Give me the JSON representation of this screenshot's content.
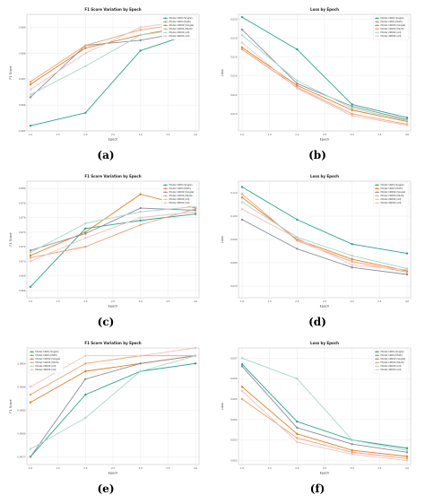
{
  "panels": [
    {
      "id": "a",
      "caption": "(a)",
      "chart_data": {
        "type": "line",
        "title": "F1 Score Variation by Epoch",
        "xlabel": "Epoch",
        "ylabel": "F1 Score",
        "x": [
          1,
          2,
          3,
          4
        ],
        "xticks": [
          1.0,
          1.5,
          2.0,
          2.5,
          3.0,
          3.5,
          4.0
        ],
        "xtick_labels": [
          "1.0",
          "1.5",
          "2.0",
          "2.5",
          "3.0",
          "3.5",
          "4.0"
        ],
        "ylim": [
          0.985,
          0.9895
        ],
        "yticks": [
          0.985,
          0.986,
          0.987,
          0.988,
          0.989
        ],
        "ytick_labels": [
          "0.985",
          "0.986",
          "0.987",
          "0.988",
          "0.989"
        ],
        "grid": true,
        "legend_position": "top-right",
        "series": [
          {
            "name": "Model 1000 (Single)",
            "color": "#2ca58d",
            "values": [
              0.9852,
              0.9857,
              0.9881,
              0.9888
            ]
          },
          {
            "name": "Model 1000 (Multi)",
            "color": "#e67e22",
            "values": [
              0.9868,
              0.9882,
              0.9887,
              0.9891
            ]
          },
          {
            "name": "Model 10000 (Single)",
            "color": "#8e8e9e",
            "values": [
              0.9863,
              0.9883,
              0.9885,
              0.9889
            ]
          },
          {
            "name": "Model 10000 (Multi)",
            "color": "#f0a070",
            "values": [
              0.9869,
              0.9883,
              0.9889,
              0.9892
            ]
          },
          {
            "name": "Model 20000 (All)",
            "color": "#a8d8c8",
            "values": [
              0.9864,
              0.9875,
              0.9887,
              0.989
            ]
          },
          {
            "name": "Model 40000 (All)",
            "color": "#f2c0c0",
            "values": [
              0.9866,
              0.988,
              0.989,
              0.9893
            ]
          }
        ]
      }
    },
    {
      "id": "b",
      "caption": "(b)",
      "chart_data": {
        "type": "line",
        "title": "Loss by Epoch",
        "xlabel": "Epoch",
        "ylabel": "Loss",
        "x": [
          1,
          2,
          3,
          4
        ],
        "xticks": [
          1.0,
          1.5,
          2.0,
          2.5,
          3.0,
          3.5,
          4.0
        ],
        "xtick_labels": [
          "1.0",
          "1.5",
          "2.0",
          "2.5",
          "3.0",
          "3.5",
          "4.0"
        ],
        "ylim": [
          0.0082,
          0.0205
        ],
        "yticks": [
          0.01,
          0.012,
          0.014,
          0.016,
          0.018,
          0.02
        ],
        "ytick_labels": [
          "0.010",
          "0.012",
          "0.014",
          "0.016",
          "0.018",
          "0.020"
        ],
        "grid": true,
        "legend_position": "top-right",
        "series": [
          {
            "name": "Model 1000 (Single)",
            "color": "#2ca58d",
            "values": [
              0.0202,
              0.0168,
              0.011,
              0.0096
            ]
          },
          {
            "name": "Model 1000 (Multi)",
            "color": "#e67e22",
            "values": [
              0.017,
              0.013,
              0.0104,
              0.0092
            ]
          },
          {
            "name": "Model 10000 (Single)",
            "color": "#8e8e9e",
            "values": [
              0.0189,
              0.0132,
              0.0108,
              0.0094
            ]
          },
          {
            "name": "Model 10000 (Multi)",
            "color": "#f0a070",
            "values": [
              0.0168,
              0.0128,
              0.01,
              0.0089
            ]
          },
          {
            "name": "Model 20000 (All)",
            "color": "#a8d8c8",
            "values": [
              0.0183,
              0.0135,
              0.0106,
              0.0093
            ]
          },
          {
            "name": "Model 40000 (All)",
            "color": "#f2c0c0",
            "values": [
              0.0175,
              0.0127,
              0.0098,
              0.0088
            ]
          }
        ]
      }
    },
    {
      "id": "c",
      "caption": "(c)",
      "chart_data": {
        "type": "line",
        "title": "F1 Score Variation by Epoch",
        "xlabel": "Epoch",
        "ylabel": "F1 Score",
        "x": [
          1,
          2,
          3,
          4
        ],
        "xticks": [
          1.0,
          1.5,
          2.0,
          2.5,
          3.0,
          3.5,
          4.0
        ],
        "xtick_labels": [
          "1.0",
          "1.5",
          "2.0",
          "2.5",
          "3.0",
          "3.5",
          "4.0"
        ],
        "ylim": [
          0.965,
          0.981
        ],
        "yticks": [
          0.966,
          0.968,
          0.97,
          0.972,
          0.974,
          0.976,
          0.978,
          0.98
        ],
        "ytick_labels": [
          "0.966",
          "0.968",
          "0.970",
          "0.972",
          "0.974",
          "0.976",
          "0.978",
          "0.980"
        ],
        "grid": true,
        "legend_position": "top-right",
        "series": [
          {
            "name": "Model 1000 (Single)",
            "color": "#2ca58d",
            "values": [
              0.9665,
              0.9745,
              0.9756,
              0.9765
            ]
          },
          {
            "name": "Model 1000 (Multi)",
            "color": "#e67e22",
            "values": [
              0.9708,
              0.974,
              0.9792,
              0.9773
            ]
          },
          {
            "name": "Model 10000 (Single)",
            "color": "#8e8e9e",
            "values": [
              0.9715,
              0.9738,
              0.9773,
              0.977
            ]
          },
          {
            "name": "Model 10000 (Multi)",
            "color": "#f0a070",
            "values": [
              0.9705,
              0.972,
              0.975,
              0.9772
            ]
          },
          {
            "name": "Model 20000 (All)",
            "color": "#a8d8c8",
            "values": [
              0.9712,
              0.9752,
              0.9768,
              0.9775
            ]
          },
          {
            "name": "Model 40000 (All)",
            "color": "#f2c0c0",
            "values": [
              0.97,
              0.9732,
              0.976,
              0.9768
            ]
          }
        ]
      }
    },
    {
      "id": "d",
      "caption": "(d)",
      "chart_data": {
        "type": "line",
        "title": "Loss by Epoch",
        "xlabel": "Epoch",
        "ylabel": "Loss",
        "x": [
          1,
          2,
          3,
          4
        ],
        "xticks": [
          1.0,
          1.5,
          2.0,
          2.5,
          3.0,
          3.5,
          4.0
        ],
        "xtick_labels": [
          "1.0",
          "1.5",
          "2.0",
          "2.5",
          "3.0",
          "3.5",
          "4.0"
        ],
        "ylim": [
          0.065,
          0.115
        ],
        "yticks": [
          0.07,
          0.08,
          0.09,
          0.1,
          0.11
        ],
        "ytick_labels": [
          "0.070",
          "0.080",
          "0.090",
          "0.100",
          "0.110"
        ],
        "grid": true,
        "legend_position": "top-right",
        "series": [
          {
            "name": "Model 1000 (Single)",
            "color": "#2ca58d",
            "values": [
              0.1125,
              0.0985,
              0.088,
              0.084
            ]
          },
          {
            "name": "Model 1000 (Multi)",
            "color": "#e67e22",
            "values": [
              0.108,
              0.09,
              0.0815,
              0.0765
            ]
          },
          {
            "name": "Model 10000 (Single)",
            "color": "#8e8e9e",
            "values": [
              0.0985,
              0.086,
              0.078,
              0.075
            ]
          },
          {
            "name": "Model 10000 (Multi)",
            "color": "#f0a070",
            "values": [
              0.1095,
              0.0895,
              0.0805,
              0.076
            ]
          },
          {
            "name": "Model 20000 (All)",
            "color": "#a8d8c8",
            "values": [
              0.106,
              0.091,
              0.083,
              0.0775
            ]
          },
          {
            "name": "Model 40000 (All)",
            "color": "#f2c0c0",
            "values": [
              0.103,
              0.0905,
              0.079,
              0.077
            ]
          }
        ]
      }
    },
    {
      "id": "e",
      "caption": "(e)",
      "chart_data": {
        "type": "line",
        "title": "F1 Score Variation by Epoch",
        "xlabel": "Epoch",
        "ylabel": "F1 Score",
        "x": [
          1,
          2,
          3,
          4
        ],
        "xticks": [
          1.0,
          1.5,
          2.0,
          2.5,
          3.0,
          3.5,
          4.0
        ],
        "xtick_labels": [
          "1.0",
          "1.5",
          "2.0",
          "2.5",
          "3.0",
          "3.5",
          "4.0"
        ],
        "ylim": [
          0.9976,
          0.9991
        ],
        "yticks": [
          0.9977,
          0.998,
          0.9983,
          0.9986,
          0.9989
        ],
        "ytick_labels": [
          "0.9977",
          "0.9980",
          "0.9983",
          "0.9986",
          "0.9989"
        ],
        "grid": true,
        "legend_position": "top-left",
        "series": [
          {
            "name": "Model 1000 (Single)",
            "color": "#2ca58d",
            "values": [
              0.9977,
              0.9985,
              0.9988,
              0.9989
            ]
          },
          {
            "name": "Model 1000 (Multi)",
            "color": "#e67e22",
            "values": [
              0.9984,
              0.9988,
              0.9989,
              0.999
            ]
          },
          {
            "name": "Model 10000 (Single)",
            "color": "#8e8e9e",
            "values": [
              0.9977,
              0.9987,
              0.9989,
              0.999
            ]
          },
          {
            "name": "Model 10000 (Multi)",
            "color": "#f0a070",
            "values": [
              0.9985,
              0.9989,
              0.999,
              0.999
            ]
          },
          {
            "name": "Model 20000 (All)",
            "color": "#a8d8c8",
            "values": [
              0.9978,
              0.9982,
              0.9988,
              0.999
            ]
          },
          {
            "name": "Model 40000 (All)",
            "color": "#f2c0c0",
            "values": [
              0.9986,
              0.999,
              0.999,
              0.9991
            ]
          }
        ]
      }
    },
    {
      "id": "f",
      "caption": "(f)",
      "chart_data": {
        "type": "line",
        "title": "Loss by Epoch",
        "xlabel": "Epoch",
        "ylabel": "Loss",
        "x": [
          1,
          2,
          3,
          4
        ],
        "xticks": [
          1.0,
          1.5,
          2.0,
          2.5,
          3.0,
          3.5,
          4.0
        ],
        "xtick_labels": [
          "1.0",
          "1.5",
          "2.0",
          "2.5",
          "3.0",
          "3.5",
          "4.0"
        ],
        "ylim": [
          0.0018,
          0.0075
        ],
        "yticks": [
          0.002,
          0.003,
          0.004,
          0.005,
          0.006,
          0.007
        ],
        "ytick_labels": [
          "0.002",
          "0.003",
          "0.004",
          "0.005",
          "0.006",
          "0.007"
        ],
        "grid": true,
        "legend_position": "top-right",
        "series": [
          {
            "name": "Model 1000 (Single)",
            "color": "#2ca58d",
            "values": [
              0.0067,
              0.0039,
              0.003,
              0.0026
            ]
          },
          {
            "name": "Model 1000 (Multi)",
            "color": "#e67e22",
            "values": [
              0.0056,
              0.0033,
              0.0025,
              0.0022
            ]
          },
          {
            "name": "Model 10000 (Single)",
            "color": "#8e8e9e",
            "values": [
              0.0066,
              0.0036,
              0.0028,
              0.0024
            ]
          },
          {
            "name": "Model 10000 (Multi)",
            "color": "#f0a070",
            "values": [
              0.005,
              0.0031,
              0.0024,
              0.0021
            ]
          },
          {
            "name": "Model 20000 (All)",
            "color": "#a8d8c8",
            "values": [
              0.007,
              0.006,
              0.003,
              0.0025
            ]
          },
          {
            "name": "Model 40000 (All)",
            "color": "#f2c0c0",
            "values": [
              0.0054,
              0.0029,
              0.0023,
              0.002
            ]
          }
        ]
      }
    }
  ]
}
